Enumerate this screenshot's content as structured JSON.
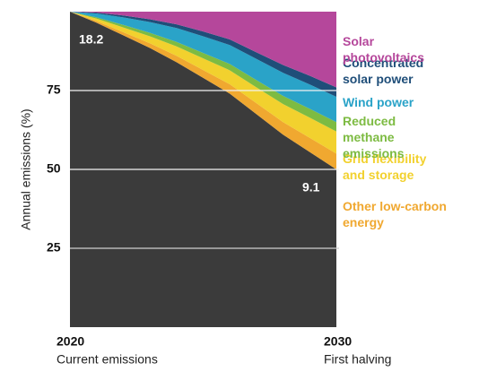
{
  "chart_data": {
    "type": "stacked_area",
    "y_label": "Annual emissions (%)",
    "x": [
      2020,
      2021,
      2022,
      2023,
      2024,
      2025,
      2026,
      2027,
      2028,
      2029,
      2030
    ],
    "xlim": [
      2020,
      2030
    ],
    "xticks": [
      2020,
      2030
    ],
    "x_sublabels": [
      "Current emissions",
      "First halving"
    ],
    "ylim": [
      0,
      100
    ],
    "yticks": [
      25,
      50,
      75
    ],
    "grid": true,
    "base": {
      "color": "#3b3b3b",
      "values": [
        100,
        96.5,
        92.5,
        88.5,
        84,
        79,
        74,
        67.5,
        61,
        55.5,
        50
      ]
    },
    "series": [
      {
        "name": "Other low-carbon energy",
        "color": "#f0a830",
        "values": [
          0,
          0.5,
          1,
          1.5,
          2,
          2.5,
          3,
          3.5,
          4,
          4.5,
          5
        ]
      },
      {
        "name": "Grid flexibility and storage",
        "color": "#f2d12e",
        "values": [
          0,
          0.8,
          1.5,
          2.2,
          3,
          3.7,
          4.4,
          5,
          5.7,
          6.4,
          7
        ]
      },
      {
        "name": "Reduced methane emissions",
        "color": "#7dbb42",
        "values": [
          0,
          0.4,
          0.8,
          1.1,
          1.4,
          1.7,
          2,
          2.3,
          2.6,
          2.8,
          3
        ]
      },
      {
        "name": "Wind power",
        "color": "#2aa3c8",
        "values": [
          0,
          1.2,
          2.4,
          3.4,
          4.4,
          5.3,
          6,
          6.7,
          7.3,
          7.7,
          8
        ]
      },
      {
        "name": "Concentrated solar power",
        "color": "#1f4e79",
        "values": [
          0,
          0.3,
          0.6,
          0.9,
          1.2,
          1.5,
          1.8,
          2.1,
          2.5,
          2.8,
          3
        ]
      },
      {
        "name": "Solar photovoltaics",
        "color": "#b5479b",
        "values": [
          0,
          0.3,
          1.2,
          2.4,
          4,
          6.3,
          8.8,
          12.9,
          16.9,
          20.3,
          24
        ]
      }
    ],
    "annotations": [
      "18.2",
      "9.1"
    ]
  }
}
